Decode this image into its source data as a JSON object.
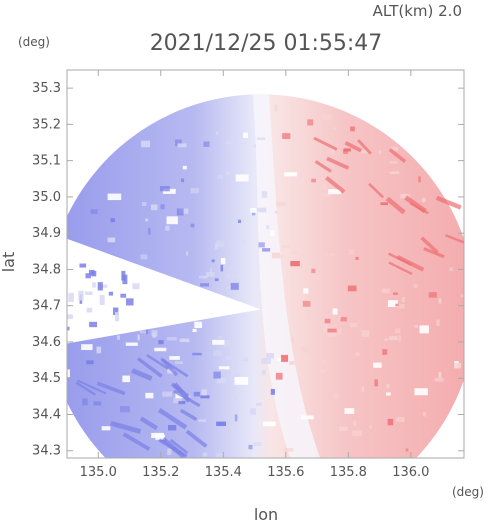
{
  "chart_data": {
    "type": "heatmap",
    "title": "2021/12/25 01:55:47",
    "subtitle": "ALT(km) 2.0",
    "xlabel": "lon",
    "ylabel": "lat",
    "x_unit": "(deg)",
    "y_unit": "(deg)",
    "xlim": [
      134.9,
      136.17
    ],
    "ylim": [
      34.28,
      35.35
    ],
    "xticks": [
      {
        "value": 135.0,
        "label": "135.0"
      },
      {
        "value": 135.2,
        "label": "135.2"
      },
      {
        "value": 135.4,
        "label": "135.4"
      },
      {
        "value": 135.6,
        "label": "135.6"
      },
      {
        "value": 135.8,
        "label": "135.8"
      },
      {
        "value": 136.0,
        "label": "136.0"
      }
    ],
    "yticks": [
      {
        "value": 34.3,
        "label": "34.3"
      },
      {
        "value": 34.4,
        "label": "34.4"
      },
      {
        "value": 34.5,
        "label": "34.5"
      },
      {
        "value": 34.6,
        "label": "34.6"
      },
      {
        "value": 34.7,
        "label": "34.7"
      },
      {
        "value": 34.8,
        "label": "34.8"
      },
      {
        "value": 34.9,
        "label": "34.9"
      },
      {
        "value": 35.0,
        "label": "35.0"
      },
      {
        "value": 35.1,
        "label": "35.1"
      },
      {
        "value": 35.2,
        "label": "35.2"
      },
      {
        "value": 35.3,
        "label": "35.3"
      }
    ],
    "radar_center": {
      "lon": 135.52,
      "lat": 34.69
    },
    "radar_range_deg": 0.62,
    "colors": {
      "negative_strong": "#7b80e6",
      "negative_weak": "#d8d9f4",
      "neutral": "#f4f4fb",
      "positive_weak": "#f7d3d3",
      "positive_strong": "#ee6f73",
      "axis": "#aaaaaa",
      "text": "#555555"
    },
    "grid": false
  }
}
